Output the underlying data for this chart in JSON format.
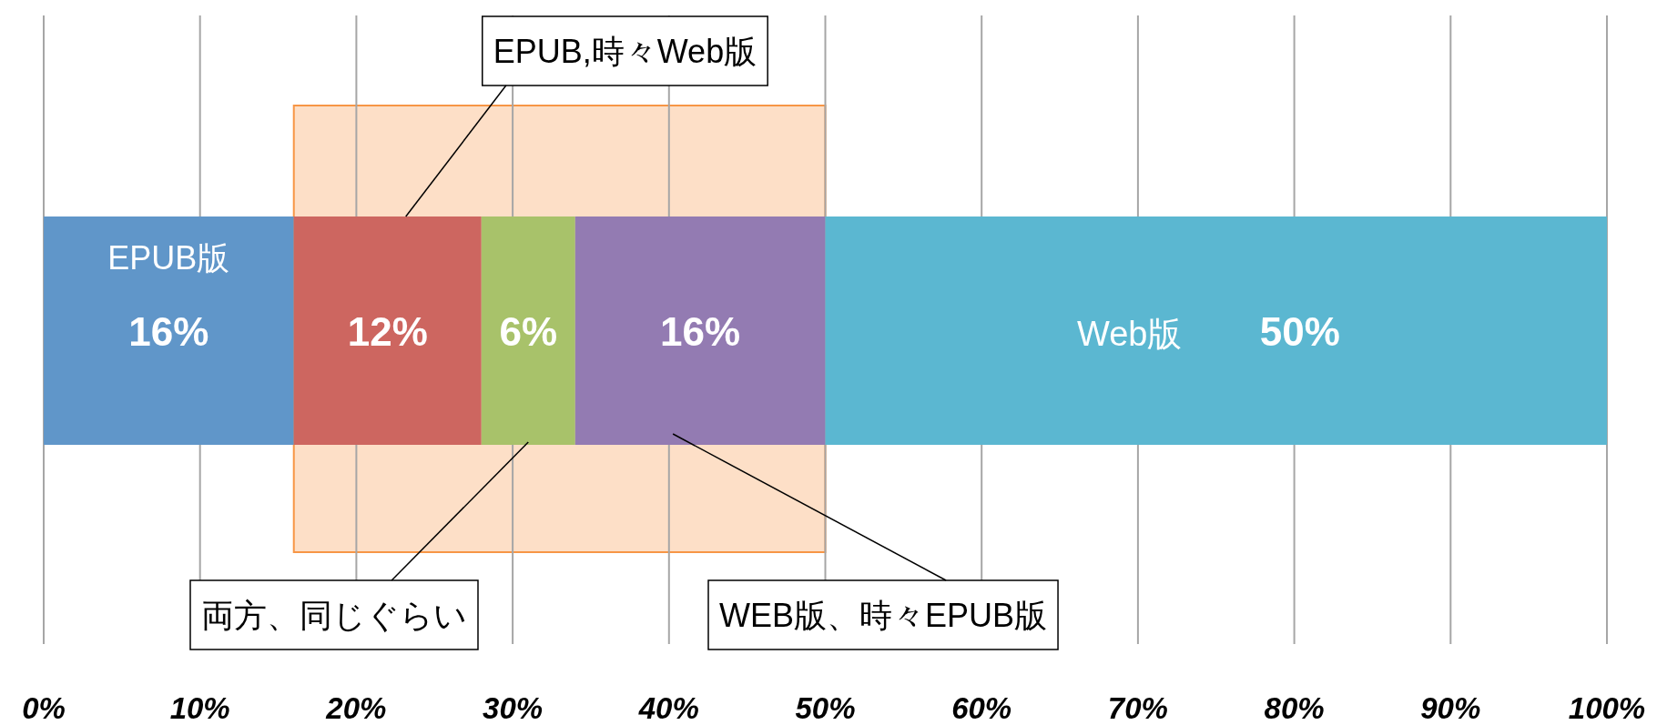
{
  "chart_data": {
    "type": "bar",
    "orientation": "horizontal",
    "stacked": true,
    "categories": [
      null
    ],
    "series": [
      {
        "name": "EPUB版",
        "color": "#6096c9",
        "values": [
          16
        ],
        "value_labels": [
          "16%"
        ]
      },
      {
        "name": "EPUB,時々Web版",
        "color": "#cd6660",
        "values": [
          12
        ],
        "value_labels": [
          "12%"
        ]
      },
      {
        "name": "両方、同じぐらい",
        "color": "#a8c26a",
        "values": [
          6
        ],
        "value_labels": [
          "6%"
        ]
      },
      {
        "name": "WEB版、時々EPUB版",
        "color": "#937bb2",
        "values": [
          16
        ],
        "value_labels": [
          "16%"
        ]
      },
      {
        "name": "Web版",
        "color": "#5bb7d1",
        "values": [
          50
        ],
        "value_labels": [
          "50%"
        ]
      }
    ],
    "xlim": [
      0,
      100
    ],
    "xticks": [
      {
        "value": 0,
        "label": "0%"
      },
      {
        "value": 10,
        "label": "10%"
      },
      {
        "value": 20,
        "label": "20%"
      },
      {
        "value": 30,
        "label": "30%"
      },
      {
        "value": 40,
        "label": "40%"
      },
      {
        "value": 50,
        "label": "50%"
      },
      {
        "value": 60,
        "label": "60%"
      },
      {
        "value": 70,
        "label": "70%"
      },
      {
        "value": 80,
        "label": "80%"
      },
      {
        "value": 90,
        "label": "90%"
      },
      {
        "value": 100,
        "label": "100%"
      }
    ],
    "grid": "x",
    "tick_labels": "x",
    "bands": [
      {
        "axis": "x",
        "from": 16,
        "to": 50,
        "color": "#f79646"
      }
    ]
  }
}
